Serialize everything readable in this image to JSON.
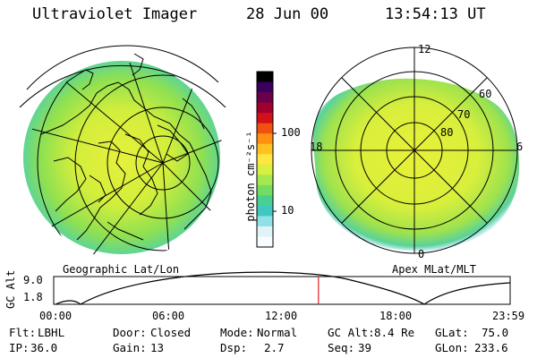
{
  "header": {
    "instrument": "Ultraviolet Imager",
    "date": "28 Jun 00",
    "time": "13:54:13 UT"
  },
  "geo_panel": {
    "label": "Geographic Lat/Lon"
  },
  "apex_panel": {
    "label": "Apex MLat/MLT",
    "mlt_labels": [
      "12",
      "18",
      "6",
      "0"
    ],
    "lat_labels": [
      "60",
      "70",
      "80"
    ]
  },
  "colorbar": {
    "unit_label": "photon cm⁻²s⁻¹",
    "ticks": [
      "100",
      "10"
    ],
    "colors": [
      "#000000",
      "#3a0060",
      "#6a004a",
      "#a00030",
      "#d21018",
      "#f05010",
      "#ff9010",
      "#ffc020",
      "#ffe640",
      "#d8f040",
      "#a6e850",
      "#74dc60",
      "#48d090",
      "#40c8c0",
      "#90e0e8",
      "#e0f4f8",
      "#f8fcff"
    ]
  },
  "altitude_strip": {
    "axis_label": "GC Alt",
    "y_ticks": [
      "9.0",
      "1.8"
    ],
    "x_ticks": [
      "00:00",
      "06:00",
      "12:00",
      "18:00",
      "23:59"
    ],
    "current_time_fraction": 0.58,
    "marker_color": "#e02020"
  },
  "info": {
    "rows": [
      [
        {
          "label": "Flt:",
          "value": "LBHL"
        },
        {
          "label": "Door:",
          "value": "Closed"
        },
        {
          "label": "Mode:",
          "value": "Normal"
        },
        {
          "label": "GC Alt:",
          "value": "8.4 Re"
        },
        {
          "label": "GLat:",
          "value": "75.0"
        }
      ],
      [
        {
          "label": "IP:",
          "value": "36.0"
        },
        {
          "label": "Gain:",
          "value": "13"
        },
        {
          "label": "Dsp:",
          "value": "2.7"
        },
        {
          "label": "Seq:",
          "value": "39"
        },
        {
          "label": "GLon:",
          "value": "233.6"
        }
      ]
    ]
  }
}
